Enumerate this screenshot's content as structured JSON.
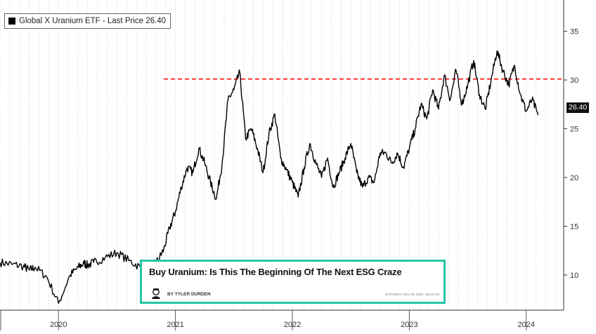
{
  "chart_data": {
    "type": "line",
    "legend": {
      "label": "Global X Uranium ETF - Last Price  26.40",
      "placement": "top-left"
    },
    "last_price_label": "26.40",
    "y_ticks": [
      10,
      15,
      20,
      25,
      30,
      35
    ],
    "ylim": [
      6.4,
      38.2
    ],
    "x_ticks": [
      "2020",
      "2021",
      "2022",
      "2023",
      "2024"
    ],
    "x": [
      2019.5,
      2019.6,
      2019.7,
      2019.75,
      2019.8,
      2019.9,
      2020.0,
      2020.1,
      2020.17,
      2020.22,
      2020.25,
      2020.3,
      2020.4,
      2020.5,
      2020.6,
      2020.7,
      2020.8,
      2020.85,
      2020.9,
      2020.95,
      2021.0,
      2021.05,
      2021.1,
      2021.15,
      2021.2,
      2021.25,
      2021.3,
      2021.35,
      2021.4,
      2021.45,
      2021.5,
      2021.55,
      2021.6,
      2021.65,
      2021.7,
      2021.75,
      2021.8,
      2021.85,
      2021.9,
      2021.95,
      2022.0,
      2022.05,
      2022.1,
      2022.15,
      2022.2,
      2022.25,
      2022.3,
      2022.35,
      2022.4,
      2022.45,
      2022.5,
      2022.55,
      2022.6,
      2022.65,
      2022.7,
      2022.75,
      2022.8,
      2022.85,
      2022.9,
      2022.95,
      2023.0,
      2023.05,
      2023.1,
      2023.15,
      2023.2,
      2023.25,
      2023.3,
      2023.35,
      2023.4,
      2023.45,
      2023.5,
      2023.55,
      2023.6,
      2023.65,
      2023.7,
      2023.75,
      2023.8,
      2023.85,
      2023.9,
      2023.95,
      2024.0,
      2024.05,
      2024.1
    ],
    "values": [
      11.3,
      11.1,
      10.9,
      10.5,
      10.8,
      9.8,
      7.1,
      10.0,
      10.8,
      11.2,
      11.0,
      11.3,
      11.8,
      12.3,
      11.5,
      10.8,
      10.9,
      11.5,
      12.6,
      14.8,
      16.5,
      19.0,
      21.0,
      20.5,
      23.0,
      21.5,
      19.5,
      17.8,
      21.5,
      28.0,
      29.0,
      30.8,
      24.0,
      25.0,
      23.0,
      20.5,
      24.5,
      26.5,
      22.0,
      20.8,
      19.5,
      18.0,
      21.0,
      23.5,
      21.5,
      20.0,
      22.0,
      19.0,
      20.5,
      22.0,
      23.5,
      20.5,
      19.0,
      20.0,
      19.5,
      22.5,
      22.5,
      21.5,
      22.5,
      21.0,
      23.0,
      25.0,
      27.5,
      26.0,
      29.0,
      27.0,
      30.5,
      28.0,
      31.0,
      27.5,
      29.5,
      32.0,
      28.5,
      27.0,
      30.0,
      33.0,
      31.0,
      29.5,
      31.5,
      28.5,
      26.8,
      28.0,
      26.4
    ],
    "reference_line": {
      "value": 30.1,
      "color": "#ff3030",
      "style": "dashed",
      "x_start": 2020.9
    },
    "annotation": {
      "title": "Buy Uranium: Is This The Beginning Of The Next ESG Craze",
      "byline": "BY TYLER DURDEN",
      "date": "SATURDAY, DEC 05, 2020 - 05:40 AM",
      "border_color": "#26c4a4",
      "arrow_target_x": 2020.84,
      "arrow_target_y": 11.2
    },
    "grid": "vertical dotted",
    "line_color": "#000000"
  }
}
